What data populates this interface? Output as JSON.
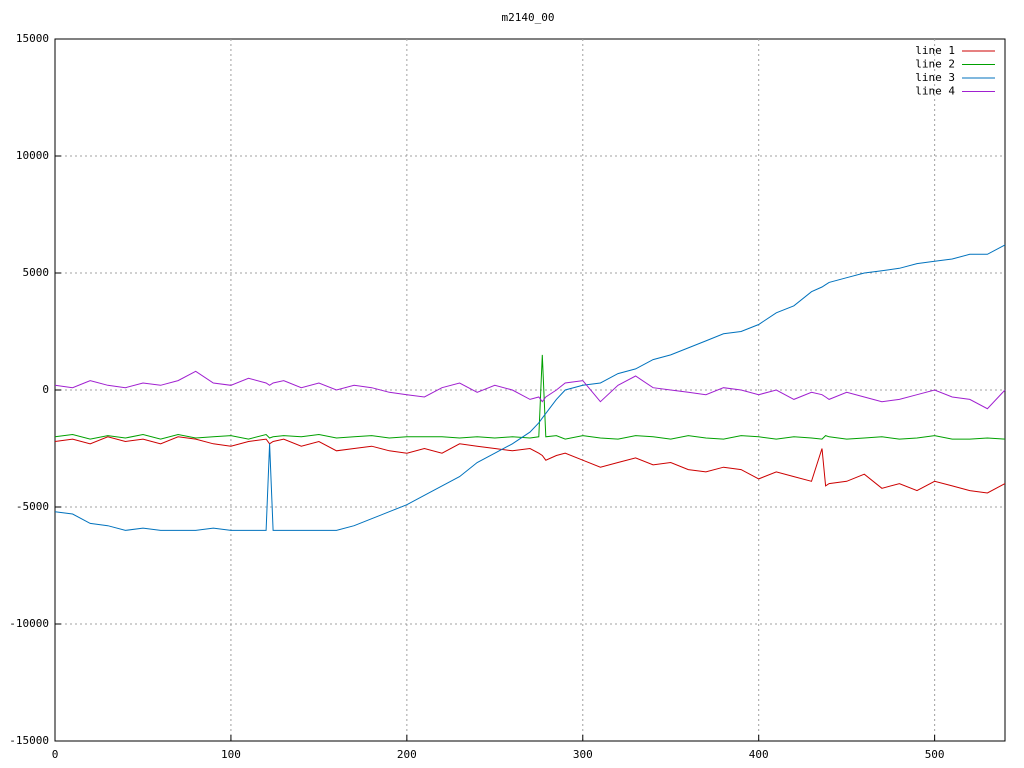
{
  "chart_data": {
    "type": "line",
    "title": "m2140_00",
    "x": [
      0,
      10,
      20,
      30,
      40,
      50,
      60,
      70,
      80,
      90,
      100,
      110,
      120,
      122,
      124,
      130,
      140,
      150,
      160,
      170,
      180,
      190,
      200,
      210,
      220,
      230,
      240,
      250,
      260,
      270,
      275,
      277,
      279,
      285,
      290,
      300,
      310,
      320,
      330,
      340,
      350,
      360,
      370,
      380,
      390,
      400,
      410,
      420,
      430,
      436,
      438,
      440,
      450,
      460,
      470,
      480,
      490,
      500,
      510,
      520,
      530,
      540
    ],
    "series": [
      {
        "name": "line 1",
        "color": "#cc0000",
        "values": [
          -2200,
          -2100,
          -2300,
          -2000,
          -2200,
          -2100,
          -2300,
          -2000,
          -2100,
          -2300,
          -2400,
          -2200,
          -2100,
          -2300,
          -2200,
          -2100,
          -2400,
          -2200,
          -2600,
          -2500,
          -2400,
          -2600,
          -2700,
          -2500,
          -2700,
          -2300,
          -2400,
          -2500,
          -2600,
          -2500,
          -2700,
          -2800,
          -3000,
          -2800,
          -2700,
          -3000,
          -3300,
          -3100,
          -2900,
          -3200,
          -3100,
          -3400,
          -3500,
          -3300,
          -3400,
          -3800,
          -3500,
          -3700,
          -3900,
          -2500,
          -4100,
          -4000,
          -3900,
          -3600,
          -4200,
          -4000,
          -4300,
          -3900,
          -4100,
          -4300,
          -4400,
          -4000
        ]
      },
      {
        "name": "line 2",
        "color": "#00a000",
        "values": [
          -2000,
          -1900,
          -2100,
          -1950,
          -2050,
          -1900,
          -2100,
          -1900,
          -2050,
          -2000,
          -1950,
          -2100,
          -1900,
          -2050,
          -2000,
          -1950,
          -2000,
          -1900,
          -2050,
          -2000,
          -1950,
          -2050,
          -2000,
          -2000,
          -2000,
          -2050,
          -2000,
          -2050,
          -2000,
          -2050,
          -2000,
          1500,
          -2000,
          -1950,
          -2100,
          -1950,
          -2050,
          -2100,
          -1950,
          -2000,
          -2100,
          -1950,
          -2050,
          -2100,
          -1950,
          -2000,
          -2100,
          -2000,
          -2050,
          -2100,
          -1950,
          -2000,
          -2100,
          -2050,
          -2000,
          -2100,
          -2050,
          -1950,
          -2100,
          -2100,
          -2050,
          -2100
        ]
      },
      {
        "name": "line 3",
        "color": "#0072bd",
        "values": [
          -5200,
          -5300,
          -5700,
          -5800,
          -6000,
          -5900,
          -6000,
          -6000,
          -6000,
          -5900,
          -6000,
          -6000,
          -6000,
          -2300,
          -6000,
          -6000,
          -6000,
          -6000,
          -6000,
          -5800,
          -5500,
          -5200,
          -4900,
          -4500,
          -4100,
          -3700,
          -3100,
          -2700,
          -2300,
          -1800,
          -1400,
          -1200,
          -1000,
          -400,
          0,
          200,
          300,
          700,
          900,
          1300,
          1500,
          1800,
          2100,
          2400,
          2500,
          2800,
          3300,
          3600,
          4200,
          4400,
          4500,
          4600,
          4800,
          5000,
          5100,
          5200,
          5400,
          5500,
          5600,
          5800,
          5800,
          6200
        ]
      },
      {
        "name": "line 4",
        "color": "#a020d0",
        "values": [
          200,
          100,
          400,
          200,
          100,
          300,
          200,
          400,
          800,
          300,
          200,
          500,
          300,
          200,
          300,
          400,
          100,
          300,
          0,
          200,
          100,
          -100,
          -200,
          -300,
          100,
          300,
          -100,
          200,
          0,
          -400,
          -300,
          -500,
          -300,
          0,
          300,
          400,
          -500,
          200,
          600,
          100,
          0,
          -100,
          -200,
          100,
          0,
          -200,
          0,
          -400,
          -100,
          -200,
          -300,
          -400,
          -100,
          -300,
          -500,
          -400,
          -200,
          0,
          -300,
          -400,
          -800,
          0
        ]
      }
    ],
    "xlim": [
      0,
      540
    ],
    "xticks": [
      0,
      100,
      200,
      300,
      400,
      500
    ],
    "ylim": [
      -15000,
      15000
    ],
    "yticks": [
      -15000,
      -10000,
      -5000,
      0,
      5000,
      10000,
      15000
    ],
    "grid": true,
    "legend": "top-right"
  }
}
